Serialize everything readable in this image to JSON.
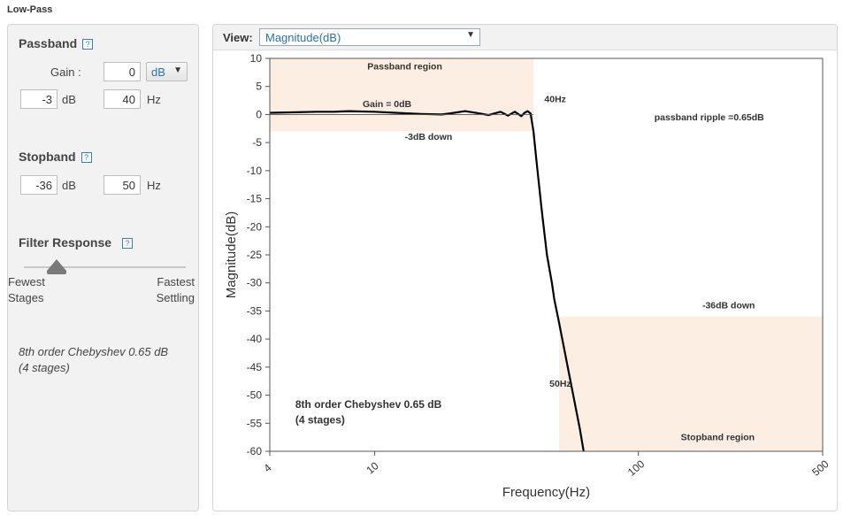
{
  "page": {
    "title": "Low-Pass"
  },
  "passband": {
    "title": "Passband",
    "help": "?",
    "gain_label": "Gain :",
    "gain_value": "0",
    "gain_unit_selected": "dB",
    "attenuation_value": "-3",
    "attenuation_unit": "dB",
    "frequency_value": "40",
    "frequency_unit": "Hz"
  },
  "stopband": {
    "title": "Stopband",
    "help": "?",
    "attenuation_value": "-36",
    "attenuation_unit": "dB",
    "frequency_value": "50",
    "frequency_unit": "Hz"
  },
  "filter_response": {
    "title": "Filter Response",
    "help": "?",
    "slider_value_fraction": 0.2,
    "left_label_line1": "Fewest",
    "left_label_line2": "Stages",
    "right_label_line1": "Fastest",
    "right_label_line2": "Settling"
  },
  "summary": {
    "line1": "8th order Chebyshev 0.65 dB",
    "line2": "(4 stages)"
  },
  "view": {
    "label": "View:",
    "selected": "Magnitude(dB)"
  },
  "chart_data": {
    "type": "line",
    "xlabel": "Frequency(Hz)",
    "ylabel": "Magnitude(dB)",
    "xscale": "log",
    "xlim": [
      4,
      500
    ],
    "ylim": [
      -60,
      10
    ],
    "x_ticks": [
      "4",
      "10",
      "100",
      "500"
    ],
    "y_ticks": [
      "10",
      "5",
      "0",
      "-5",
      "-10",
      "-15",
      "-20",
      "-25",
      "-30",
      "-35",
      "-40",
      "-45",
      "-50",
      "-55",
      "-60"
    ],
    "grid": false,
    "colors": {
      "region": "#fdeee3",
      "curve": "#000000"
    },
    "regions": [
      {
        "name": "passband",
        "x": [
          4,
          40
        ],
        "y": [
          -3,
          10
        ]
      },
      {
        "name": "stopband",
        "x": [
          50,
          500
        ],
        "y": [
          -60,
          -36
        ]
      }
    ],
    "series": [
      {
        "x": [
          4,
          5,
          6,
          7,
          8,
          10,
          12,
          15,
          18,
          20,
          22,
          25,
          27,
          30,
          32,
          34,
          36,
          37,
          38,
          39,
          40,
          41,
          43,
          45,
          47,
          48,
          50,
          55,
          60,
          62
        ],
        "y": [
          0.3,
          0.4,
          0.5,
          0.5,
          0.6,
          0.5,
          0.3,
          0.1,
          0.0,
          0.3,
          0.6,
          0.2,
          -0.1,
          0.5,
          -0.2,
          0.5,
          -0.3,
          0.3,
          0.6,
          0.2,
          -3,
          -8,
          -17,
          -25,
          -30,
          -33,
          -37,
          -47,
          -56,
          -60
        ]
      }
    ],
    "annotations": [
      {
        "text": "Passband region",
        "x": 13,
        "y": 8
      },
      {
        "text": "Gain = 0dB",
        "x": 9,
        "y": 1.3
      },
      {
        "text": "-3dB down",
        "x": 16,
        "y": -4.5
      },
      {
        "text": "40Hz",
        "x": 44,
        "y": 2.2
      },
      {
        "text": "passband ripple =0.65dB",
        "x": 115,
        "y": -1
      },
      {
        "text": "-36dB down",
        "x": 220,
        "y": -34.5
      },
      {
        "text": "50Hz",
        "x": 46,
        "y": -48.5
      },
      {
        "text": "Stopband region",
        "x": 200,
        "y": -58
      },
      {
        "text": "8th order Chebyshev 0.65 dB",
        "x": 5,
        "y": -52.3
      },
      {
        "text": "(4 stages)",
        "x": 5,
        "y": -55
      }
    ]
  }
}
